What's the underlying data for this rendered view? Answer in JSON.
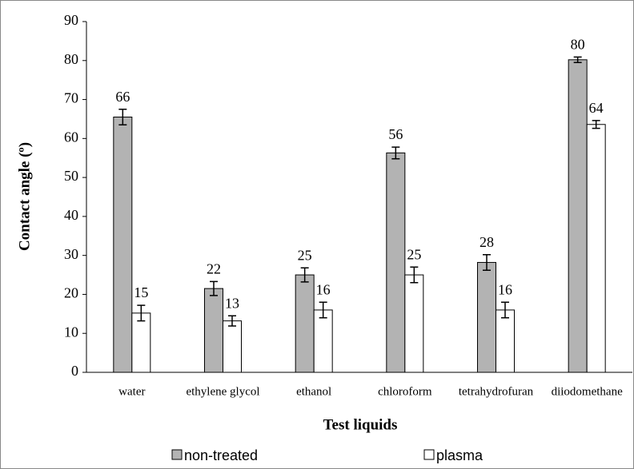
{
  "chart_data": {
    "type": "bar",
    "x_label": "Test liquids",
    "y_label": "Contact angle (º)",
    "categories": [
      "water",
      "ethylene glycol",
      "ethanol",
      "chloroform",
      "tetrahydrofuran",
      "diiodomethane"
    ],
    "series": [
      {
        "name": "non-treated",
        "color": "#b3b3b3",
        "values": [
          65.5,
          21.5,
          25,
          56.3,
          28.2,
          80.2
        ],
        "value_labels": [
          "66",
          "22",
          "25",
          "56",
          "28",
          "80"
        ],
        "errors": [
          2,
          1.8,
          1.8,
          1.5,
          2,
          0.7
        ]
      },
      {
        "name": "plasma",
        "color": "#ffffff",
        "values": [
          15.2,
          13.2,
          16,
          25,
          16,
          63.6
        ],
        "value_labels": [
          "15",
          "13",
          "16",
          "25",
          "16",
          "64"
        ],
        "errors": [
          2,
          1.3,
          2,
          2,
          2,
          1
        ]
      }
    ],
    "ylim": [
      0,
      90
    ],
    "yticks": [
      0,
      10,
      20,
      30,
      40,
      50,
      60,
      70,
      80,
      90
    ],
    "grid": false,
    "legend": "bottom"
  }
}
